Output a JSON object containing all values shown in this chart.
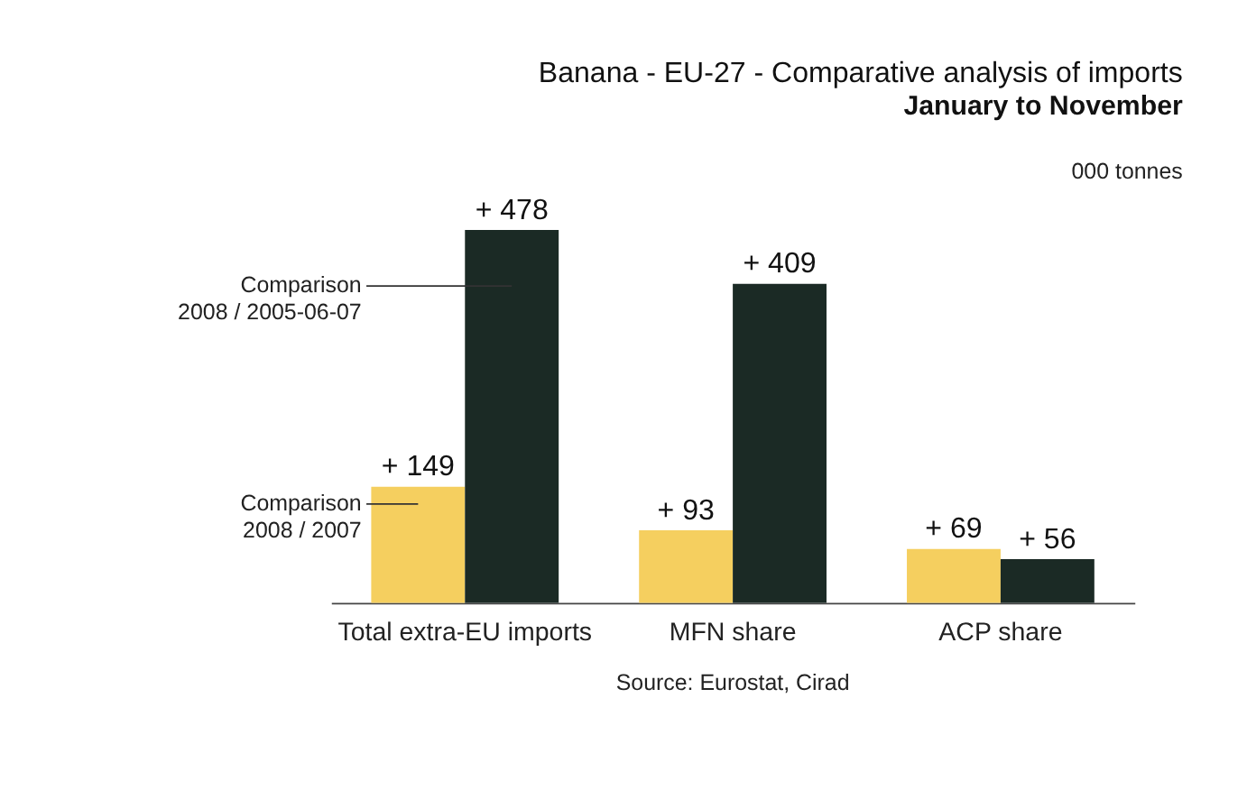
{
  "chart_data": {
    "type": "bar",
    "title": "Banana - EU-27 - Comparative analysis of imports",
    "subtitle": "January to November",
    "ylabel": "000 tonnes",
    "categories": [
      "Total extra-EU imports",
      "MFN share",
      "ACP share"
    ],
    "series": [
      {
        "name": "Comparison 2008 / 2007",
        "color": "#f5cf5f",
        "values": [
          149,
          93,
          69
        ],
        "value_labels": [
          "+ 149",
          "+ 93",
          "+ 69"
        ]
      },
      {
        "name": "Comparison 2008 / 2005-06-07",
        "color": "#1b2a25",
        "values": [
          478,
          409,
          56
        ],
        "value_labels": [
          "+ 478",
          "+ 409",
          "+ 56"
        ]
      }
    ],
    "annotations": [
      "Source: Eurostat, Cirad"
    ]
  }
}
